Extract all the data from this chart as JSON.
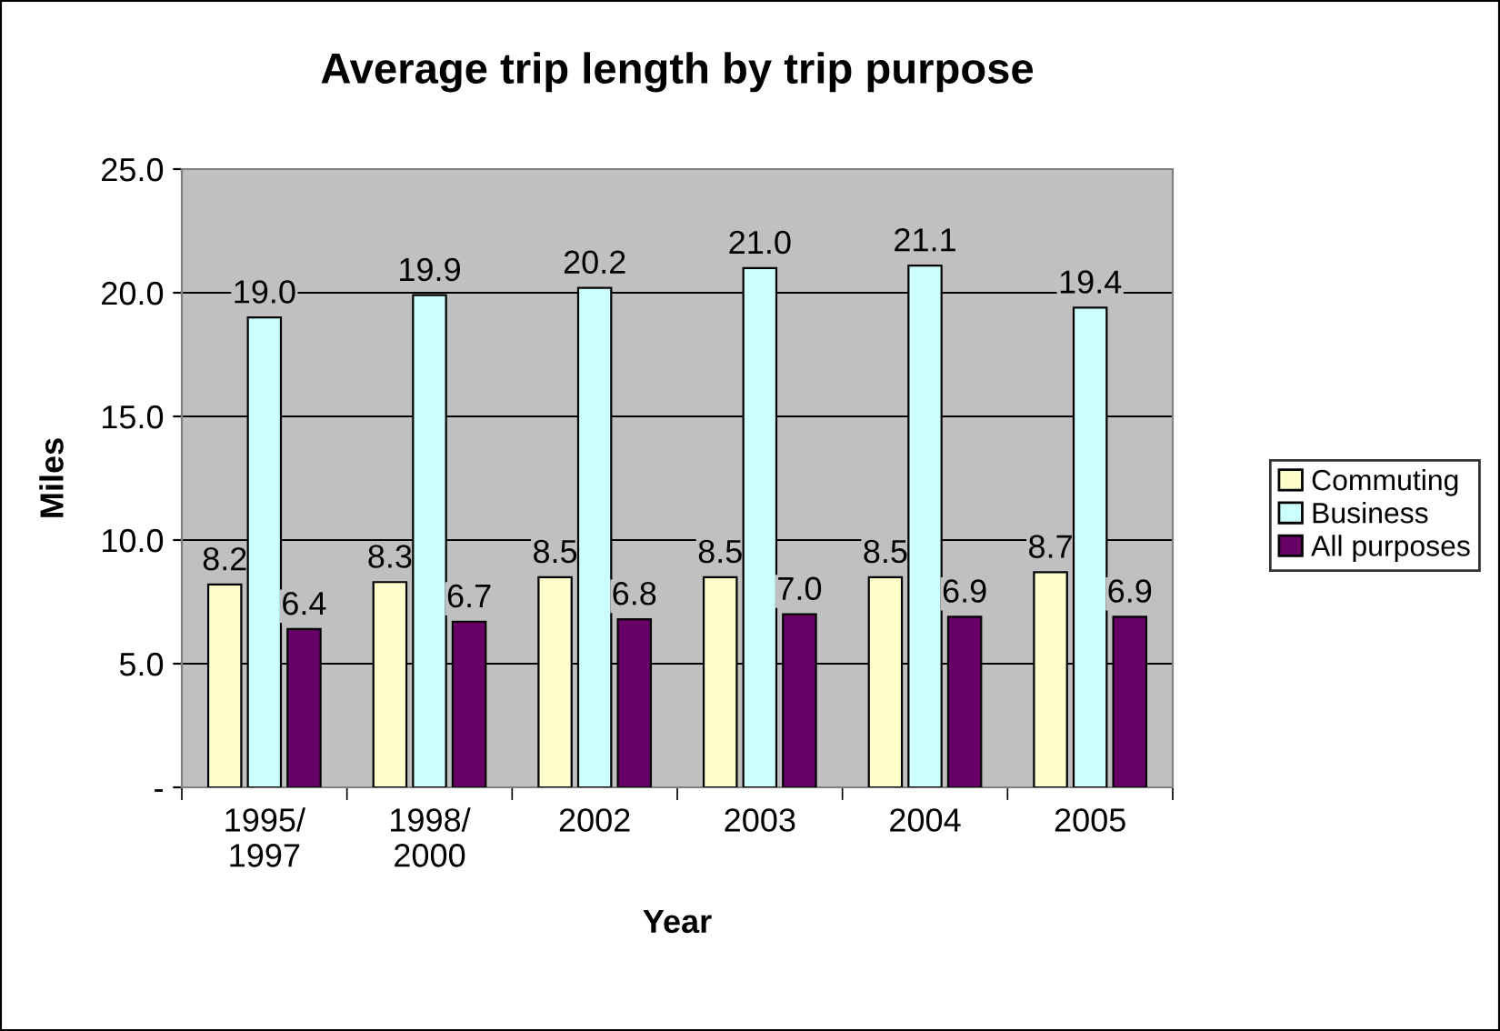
{
  "chart_data": {
    "type": "bar",
    "title": "Average trip length by trip purpose",
    "xlabel": "Year",
    "ylabel": "Miles",
    "categories": [
      "1995/\n1997",
      "1998/\n2000",
      "2002",
      "2003",
      "2004",
      "2005"
    ],
    "series": [
      {
        "name": "Commuting",
        "color": "#ffffcc",
        "values": [
          8.2,
          8.3,
          8.5,
          8.5,
          8.5,
          8.7
        ],
        "value_labels": [
          "8.2",
          "8.3",
          "8.5",
          "8.5",
          "8.5",
          "8.7"
        ]
      },
      {
        "name": "Business",
        "color": "#ccffff",
        "values": [
          19.0,
          19.9,
          20.2,
          21.0,
          21.1,
          19.4
        ],
        "value_labels": [
          "19.0",
          "19.9",
          "20.2",
          "21.0",
          "21.1",
          "19.4"
        ]
      },
      {
        "name": "All purposes",
        "color": "#660066",
        "values": [
          6.4,
          6.7,
          6.8,
          7.0,
          6.9,
          6.9
        ],
        "value_labels": [
          "6.4",
          "6.7",
          "6.8",
          "7.0",
          "6.9",
          "6.9"
        ]
      }
    ],
    "ylim": [
      0,
      25
    ],
    "yticks": [
      {
        "value": 0,
        "label": "-"
      },
      {
        "value": 5,
        "label": "5.0"
      },
      {
        "value": 10,
        "label": "10.0"
      },
      {
        "value": 15,
        "label": "15.0"
      },
      {
        "value": 20,
        "label": "20.0"
      },
      {
        "value": 25,
        "label": "25.0"
      }
    ],
    "grid": "y",
    "legend": "right"
  }
}
